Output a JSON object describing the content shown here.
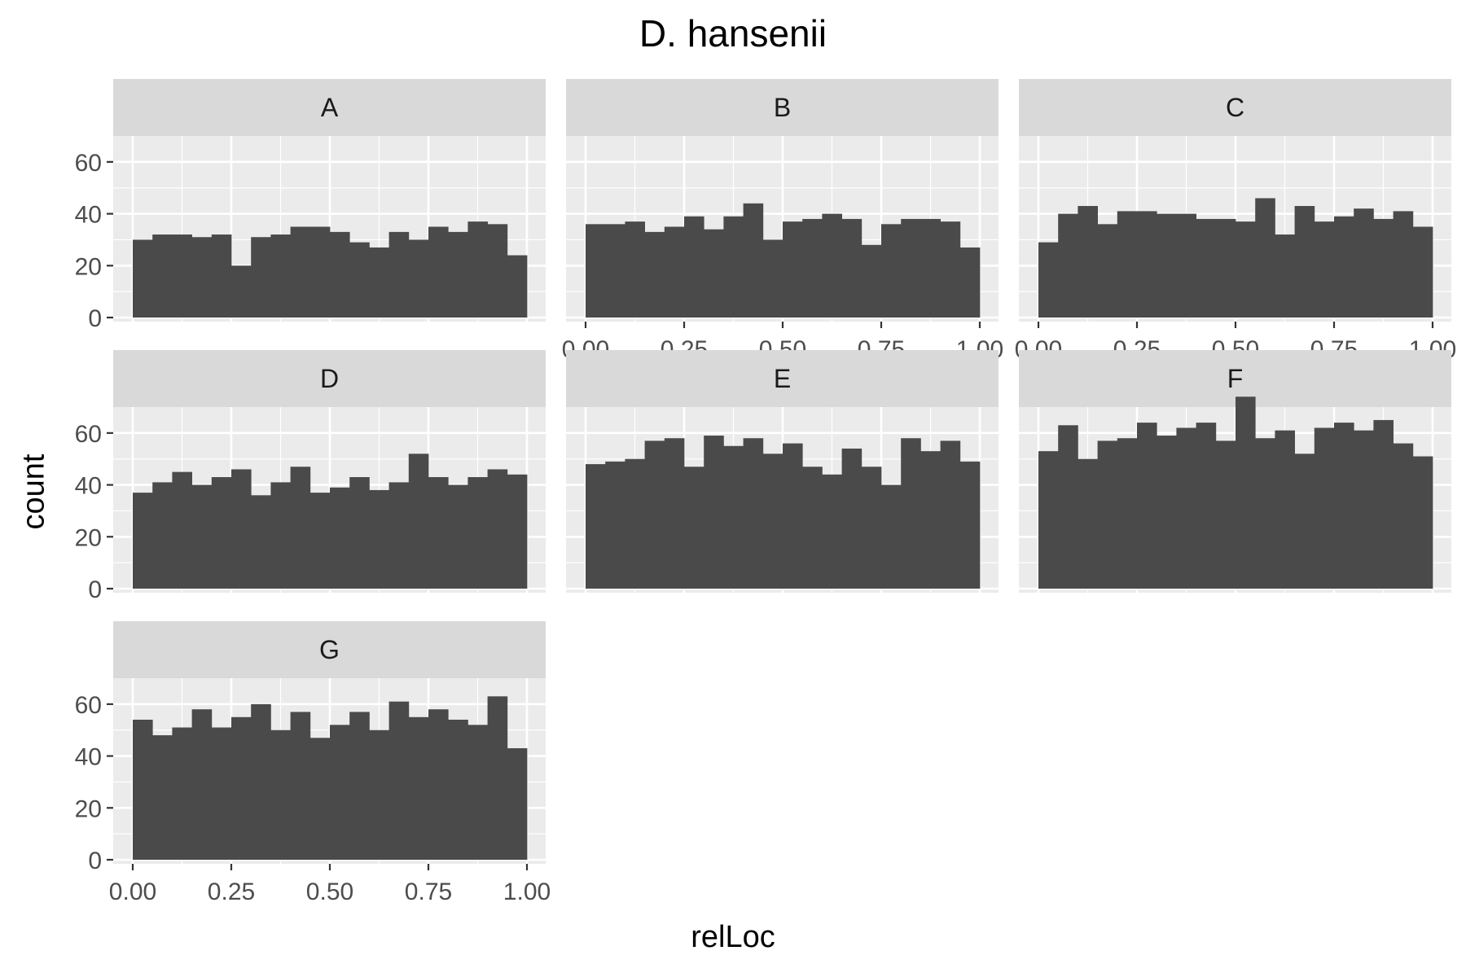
{
  "chart_data": {
    "type": "bar",
    "title": "D. hansenii",
    "xlabel": "relLoc",
    "ylabel": "count",
    "xlim": [
      0,
      1
    ],
    "ylim": [
      0,
      70
    ],
    "x_ticks": [
      "0.00",
      "0.25",
      "0.50",
      "0.75",
      "1.00"
    ],
    "y_ticks": [
      "0",
      "20",
      "40",
      "60"
    ],
    "bin_edges": [
      0,
      0.05,
      0.1,
      0.15,
      0.2,
      0.25,
      0.3,
      0.35,
      0.4,
      0.45,
      0.5,
      0.55,
      0.6,
      0.65,
      0.7,
      0.75,
      0.8,
      0.85,
      0.9,
      0.95,
      1.0
    ],
    "grid": true,
    "panels": [
      {
        "label": "A",
        "values": [
          30,
          32,
          32,
          31,
          32,
          20,
          31,
          32,
          35,
          35,
          33,
          29,
          27,
          33,
          30,
          35,
          33,
          37,
          36,
          24
        ]
      },
      {
        "label": "B",
        "values": [
          36,
          36,
          37,
          33,
          35,
          39,
          34,
          39,
          44,
          30,
          37,
          38,
          40,
          38,
          28,
          36,
          38,
          38,
          37,
          27
        ]
      },
      {
        "label": "C",
        "values": [
          29,
          40,
          43,
          36,
          41,
          41,
          40,
          40,
          38,
          38,
          37,
          46,
          32,
          43,
          37,
          39,
          42,
          38,
          41,
          35
        ]
      },
      {
        "label": "D",
        "values": [
          37,
          41,
          45,
          40,
          43,
          46,
          36,
          41,
          47,
          37,
          39,
          43,
          38,
          41,
          52,
          43,
          40,
          43,
          46,
          44
        ]
      },
      {
        "label": "E",
        "values": [
          48,
          49,
          50,
          57,
          58,
          47,
          59,
          55,
          58,
          52,
          56,
          47,
          44,
          54,
          47,
          40,
          58,
          53,
          57,
          49
        ]
      },
      {
        "label": "F",
        "values": [
          53,
          63,
          50,
          57,
          58,
          64,
          59,
          62,
          64,
          57,
          74,
          58,
          61,
          52,
          62,
          64,
          61,
          65,
          56,
          51
        ]
      },
      {
        "label": "G",
        "values": [
          54,
          48,
          51,
          58,
          51,
          55,
          60,
          50,
          57,
          47,
          52,
          57,
          50,
          61,
          55,
          58,
          54,
          52,
          63,
          43
        ]
      }
    ]
  },
  "colors": {
    "bar": "#4a4a4a",
    "panel_bg": "#ebebeb",
    "strip_bg": "#d9d9d9",
    "grid": "#ffffff",
    "tick_text": "#4d4d4d"
  }
}
